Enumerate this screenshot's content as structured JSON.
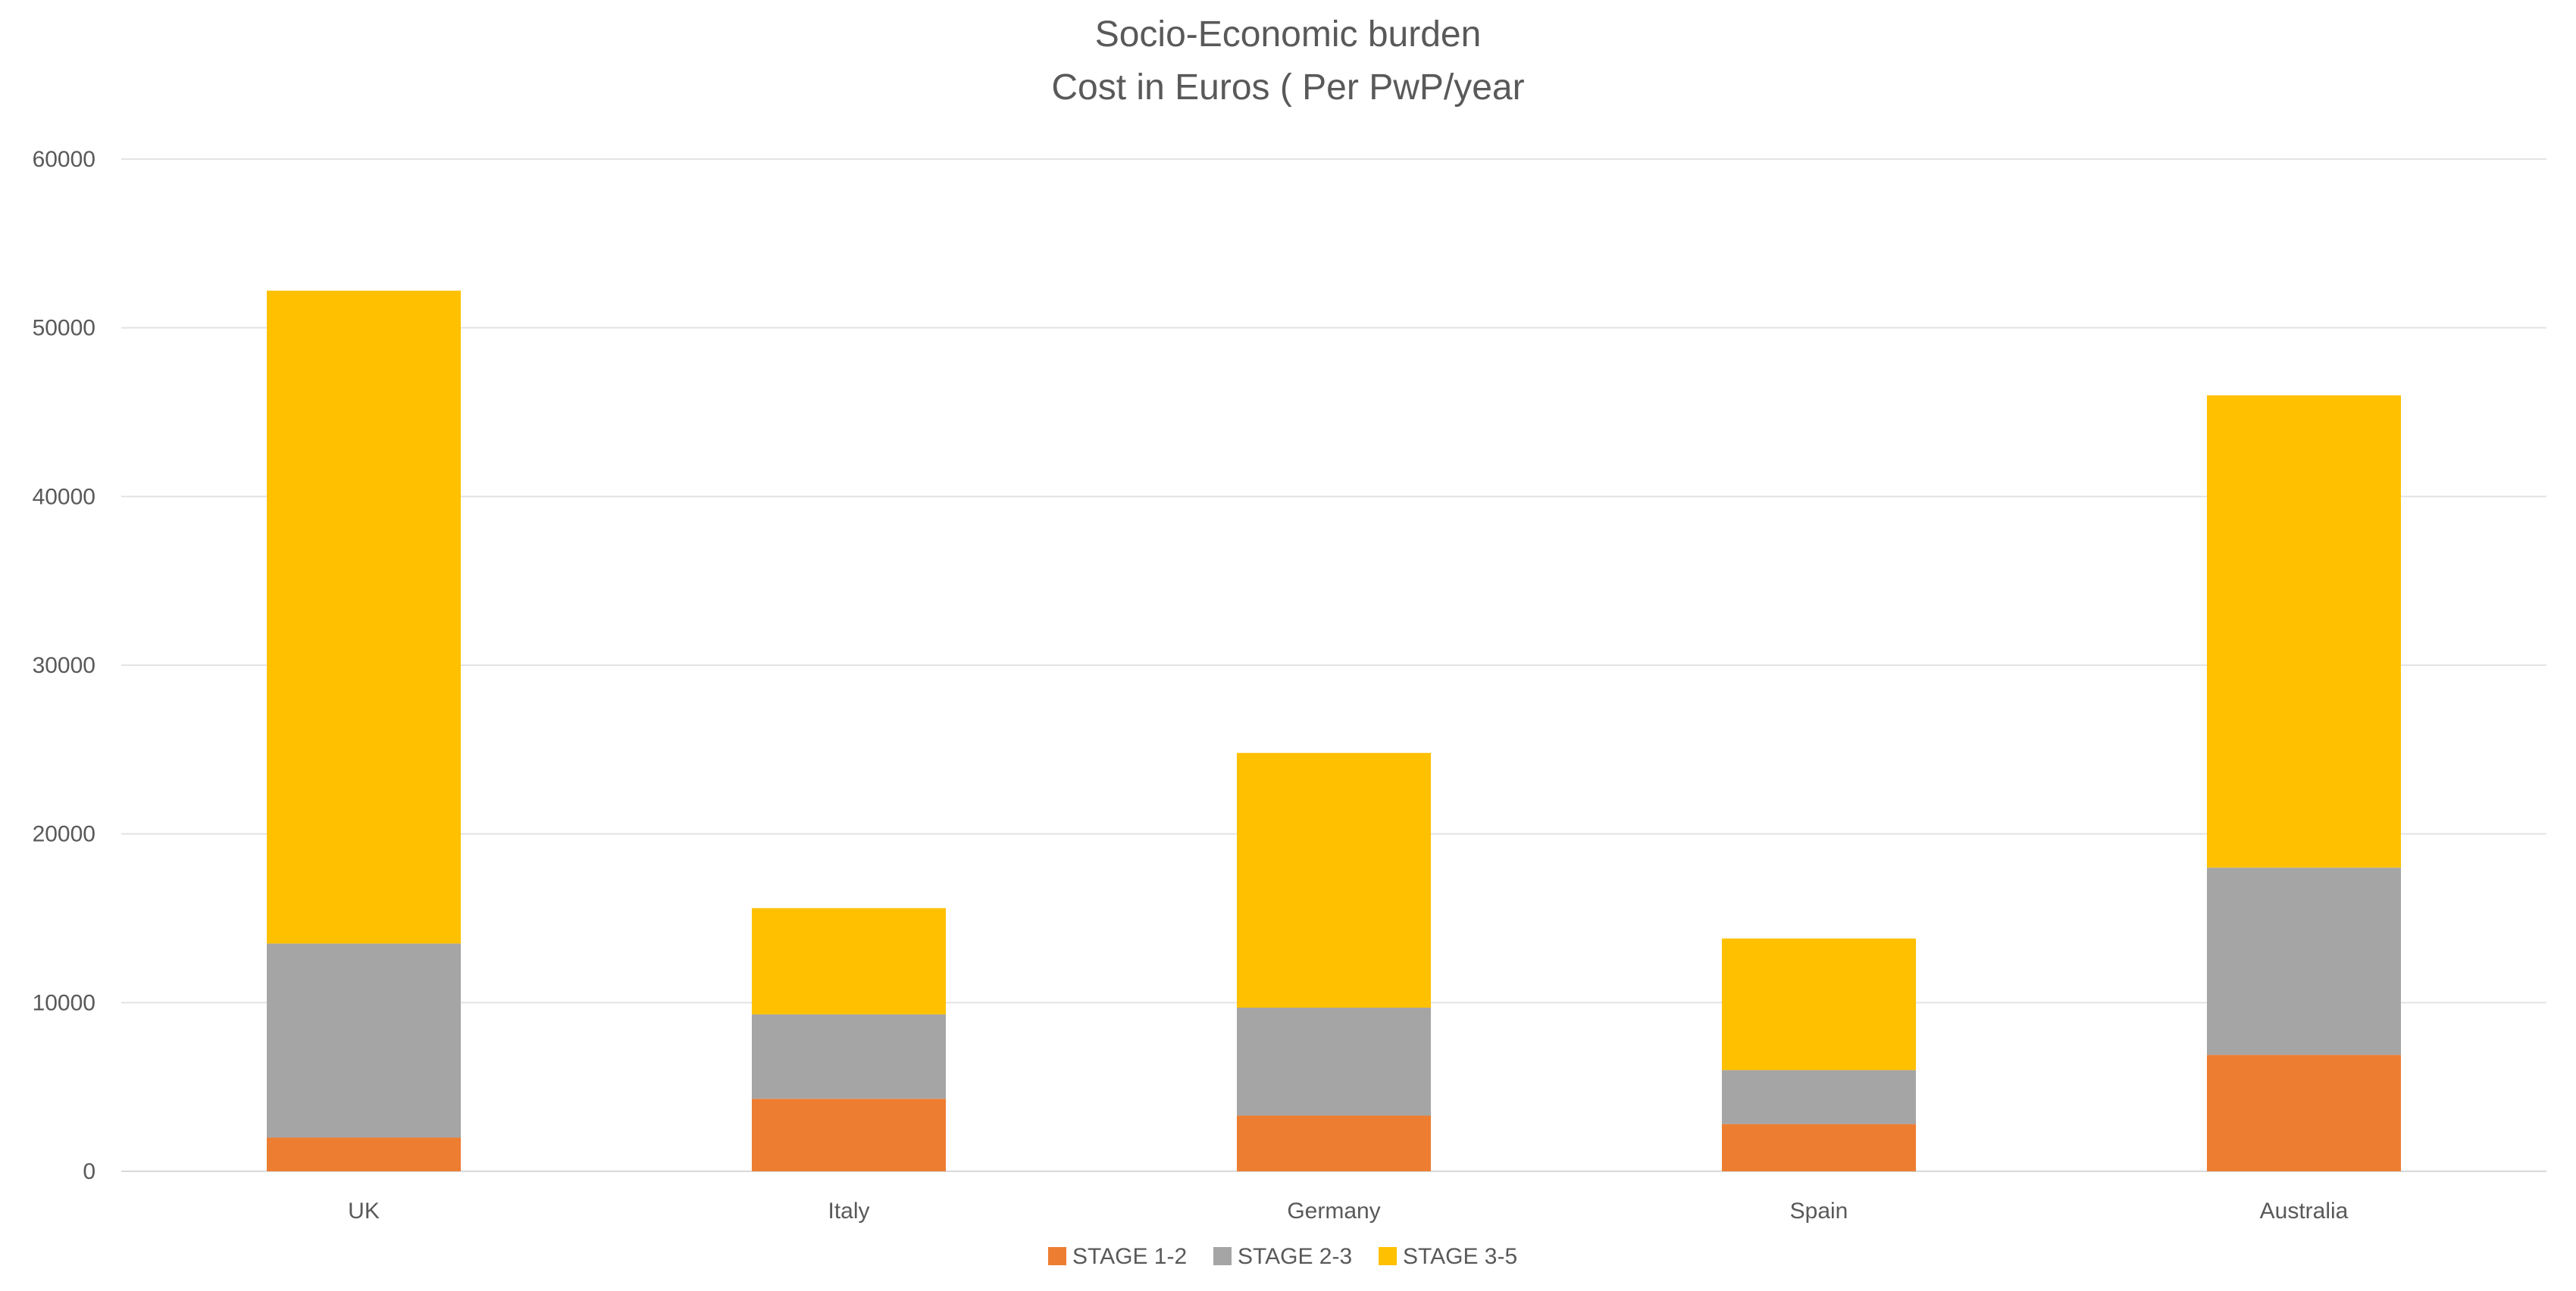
{
  "chart_data": {
    "type": "bar",
    "stacked": true,
    "title": "Socio-Economic burden",
    "subtitle": "Cost in Euros ( Per PwP/year",
    "xlabel": "",
    "ylabel": "",
    "categories": [
      "UK",
      "Italy",
      "Germany",
      "Spain",
      "Australia"
    ],
    "series": [
      {
        "name": "STAGE 1-2",
        "color": "#ED7D31",
        "values": [
          2000,
          4300,
          3300,
          2800,
          6900
        ]
      },
      {
        "name": "STAGE 2-3",
        "color": "#A5A5A5",
        "values": [
          11500,
          5000,
          6400,
          3200,
          11100
        ]
      },
      {
        "name": "STAGE 3-5",
        "color": "#FFC000",
        "values": [
          38700,
          6300,
          15100,
          7800,
          28000
        ]
      }
    ],
    "ylim": [
      0,
      60000
    ],
    "yticks": [
      "0",
      "10000",
      "20000",
      "30000",
      "40000",
      "50000",
      "60000"
    ],
    "grid": true,
    "legend_position": "bottom"
  }
}
